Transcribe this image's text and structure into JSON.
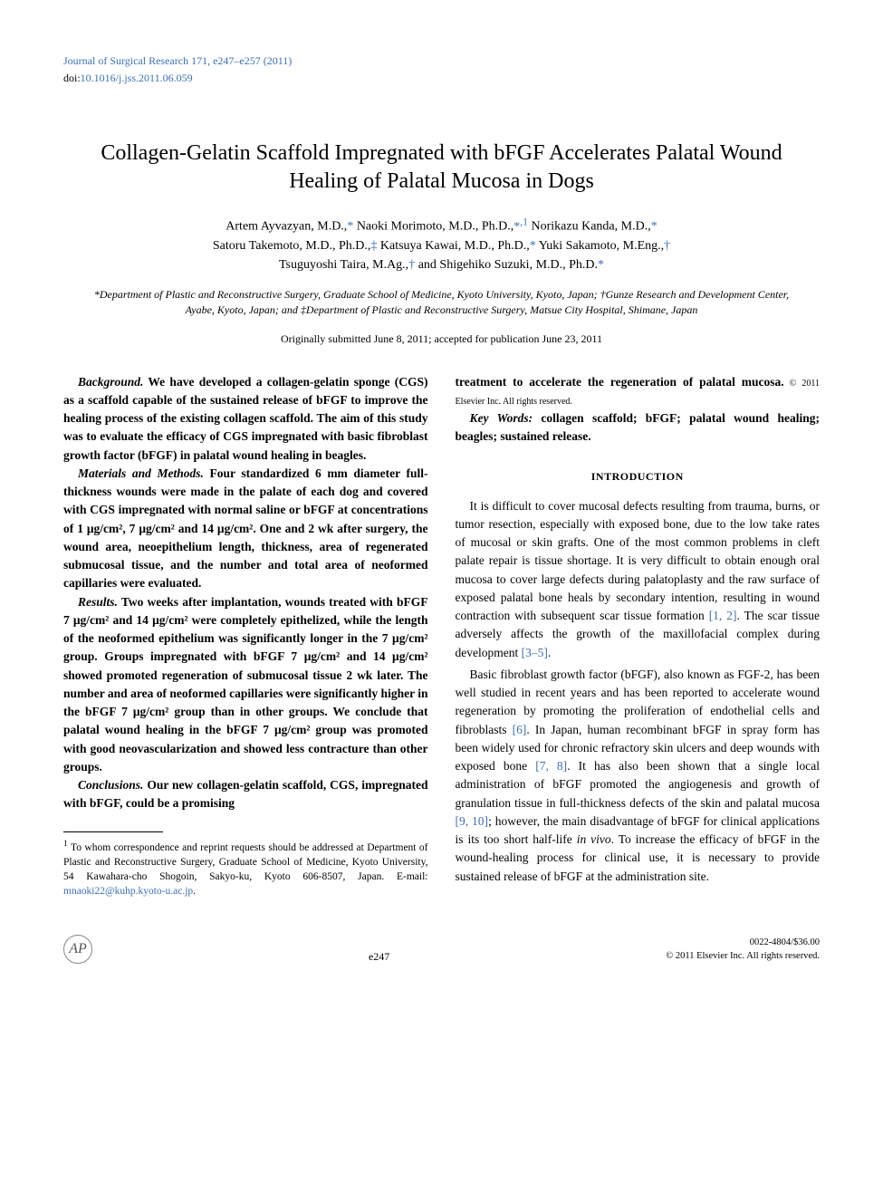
{
  "header": {
    "journal_line": "Journal of Surgical Research 171, e247–e257 (2011)",
    "doi_label": "doi:",
    "doi_value": "10.1016/j.jss.2011.06.059"
  },
  "title": "Collagen-Gelatin Scaffold Impregnated with bFGF Accelerates Palatal Wound Healing of Palatal Mucosa in Dogs",
  "authors_line1": "Artem Ayvazyan, M.D.,* Naoki Morimoto, M.D., Ph.D.,*,1 Norikazu Kanda, M.D.,*",
  "authors_line2": "Satoru Takemoto, M.D., Ph.D.,‡ Katsuya Kawai, M.D., Ph.D.,* Yuki Sakamoto, M.Eng.,†",
  "authors_line3": "Tsuguyoshi Taira, M.Ag.,† and Shigehiko Suzuki, M.D., Ph.D.*",
  "affiliations": "*Department of Plastic and Reconstructive Surgery, Graduate School of Medicine, Kyoto University, Kyoto, Japan; †Gunze Research and Development Center, Ayabe, Kyoto, Japan; and ‡Department of Plastic and Reconstructive Surgery, Matsue City Hospital, Shimane, Japan",
  "dates": "Originally submitted June 8, 2011; accepted for publication June 23, 2011",
  "abstract": {
    "background_label": "Background.",
    "background_text": " We have developed a collagen-gelatin sponge (CGS) as a scaffold capable of the sustained release of bFGF to improve the healing process of the existing collagen scaffold. The aim of this study was to evaluate the efficacy of CGS impregnated with basic fibroblast growth factor (bFGF) in palatal wound healing in beagles.",
    "methods_label": "Materials and Methods.",
    "methods_text": " Four standardized 6 mm diameter full-thickness wounds were made in the palate of each dog and covered with CGS impregnated with normal saline or bFGF at concentrations of 1 μg/cm², 7 μg/cm² and 14 μg/cm². One and 2 wk after surgery, the wound area, neoepithelium length, thickness, area of regenerated submucosal tissue, and the number and total area of neoformed capillaries were evaluated.",
    "results_label": "Results.",
    "results_text": " Two weeks after implantation, wounds treated with bFGF 7 μg/cm² and 14 μg/cm² were completely epithelized, while the length of the neoformed epithelium was significantly longer in the 7 μg/cm² group. Groups impregnated with bFGF 7 μg/cm² and 14 μg/cm² showed promoted regeneration of submucosal tissue 2 wk later. The number and area of neoformed capillaries were significantly higher in the bFGF 7 μg/cm² group than in other groups. We conclude that palatal wound healing in the bFGF 7 μg/cm² group was promoted with good neovascularization and showed less contracture than other groups.",
    "conclusions_label": "Conclusions.",
    "conclusions_text_left": " Our new collagen-gelatin scaffold, CGS, impregnated with bFGF, could be a promising",
    "conclusions_text_right": "treatment to accelerate the regeneration of palatal mucosa.",
    "copyright_inline": " © 2011 Elsevier Inc. All rights reserved."
  },
  "keywords": {
    "label": "Key Words:",
    "text": " collagen scaffold; bFGF; palatal wound healing; beagles; sustained release."
  },
  "section_heading": "INTRODUCTION",
  "intro_p1_a": "It is difficult to cover mucosal defects resulting from trauma, burns, or tumor resection, especially with exposed bone, due to the low take rates of mucosal or skin grafts. One of the most common problems in cleft palate repair is tissue shortage. It is very difficult to obtain enough oral mucosa to cover large defects during palatoplasty and the raw surface of exposed palatal bone heals by secondary intention, resulting in wound contraction with subsequent scar tissue formation ",
  "intro_p1_cite1": "[1, 2]",
  "intro_p1_b": ". The scar tissue adversely affects the growth of the maxillofacial complex during development ",
  "intro_p1_cite2": "[3–5]",
  "intro_p1_c": ".",
  "intro_p2_a": "Basic fibroblast growth factor (bFGF), also known as FGF-2, has been well studied in recent years and has been reported to accelerate wound regeneration by promoting the proliferation of endothelial cells and fibroblasts ",
  "intro_p2_cite1": "[6]",
  "intro_p2_b": ". In Japan, human recombinant bFGF in spray form has been widely used for chronic refractory skin ulcers and deep wounds with exposed bone ",
  "intro_p2_cite2": "[7, 8]",
  "intro_p2_c": ". It has also been shown that a single local administration of bFGF promoted the angiogenesis and growth of granulation tissue in full-thickness defects of the skin and palatal mucosa ",
  "intro_p2_cite3": "[9, 10]",
  "intro_p2_d": "; however, the main disadvantage of bFGF for clinical applications is its too short half-life ",
  "intro_p2_italic": "in vivo",
  "intro_p2_e": ". To increase the efficacy of bFGF in the wound-healing process for clinical use, it is necessary to provide sustained release of bFGF at the administration site.",
  "footnote": {
    "marker": "1",
    "text_a": " To whom correspondence and reprint requests should be addressed at Department of Plastic and Reconstructive Surgery, Graduate School of Medicine, Kyoto University, 54 Kawahara-cho Shogoin, Sakyo-ku, Kyoto 606-8507, Japan. E-mail: ",
    "email": "mnaoki22@kuhp.kyoto-u.ac.jp",
    "text_b": "."
  },
  "footer": {
    "page_number": "e247",
    "issn": "0022-4804/$36.00",
    "copyright": "© 2011 Elsevier Inc. All rights reserved."
  },
  "colors": {
    "link": "#3b6fb6",
    "text": "#000000",
    "background": "#ffffff"
  }
}
